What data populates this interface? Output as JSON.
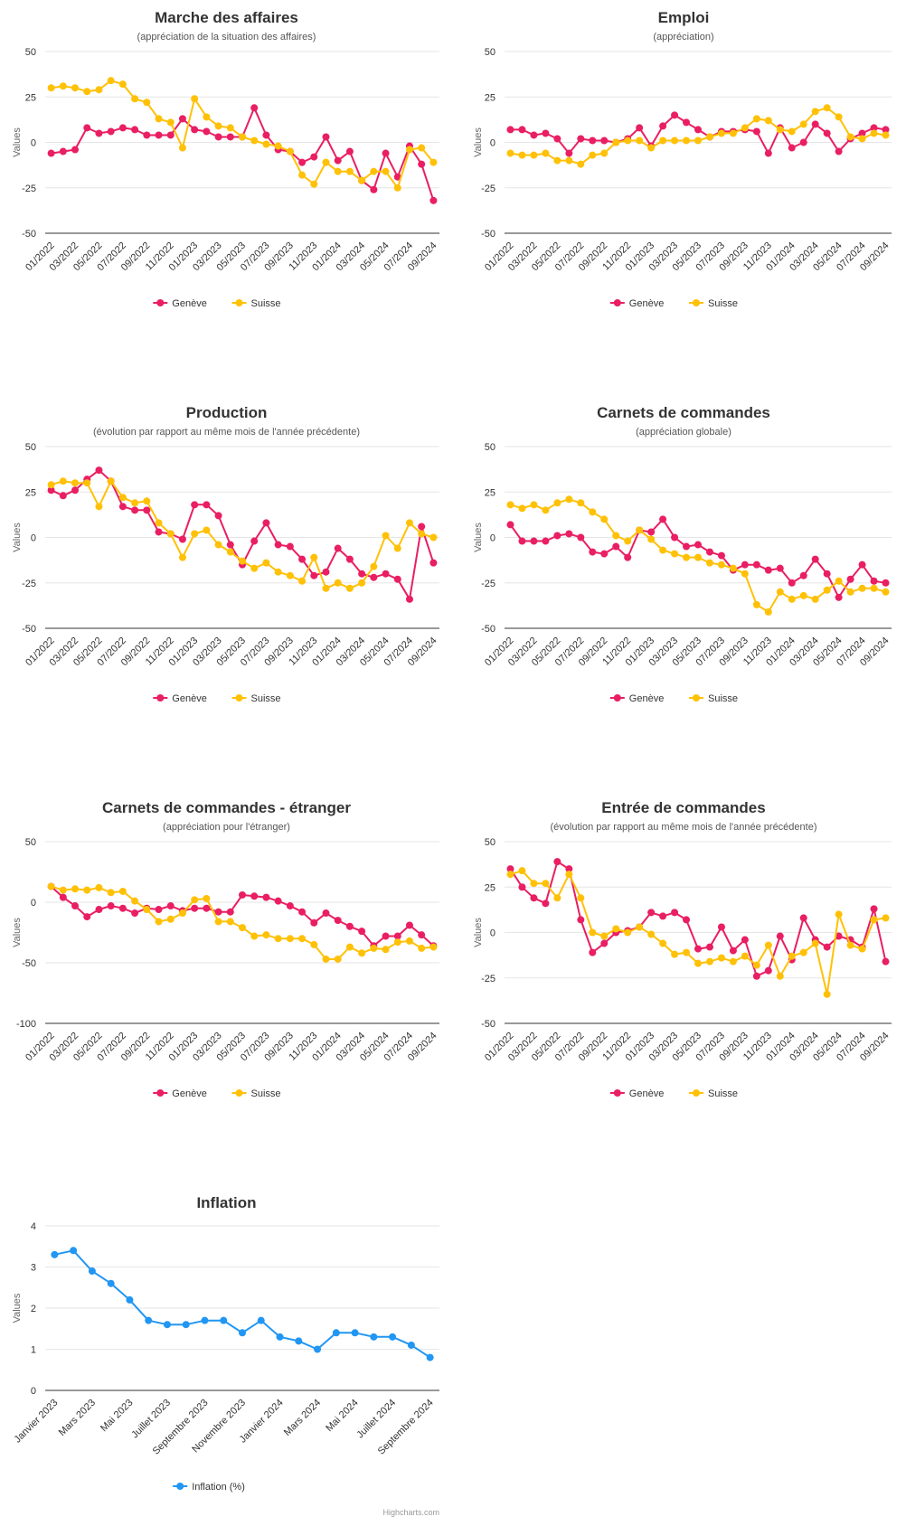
{
  "colors": {
    "geneve": "#e91e63",
    "suisse": "#ffc107",
    "inflation": "#2196f3",
    "grid": "#e6e6e6",
    "axis": "#333333"
  },
  "credit": "Highcharts.com",
  "chart_data": [
    {
      "type": "line",
      "title": "Marche des affaires",
      "subtitle": "(appréciation de la situation des affaires)",
      "ylabel": "Values",
      "ylim": [
        -50,
        50
      ],
      "yticks": [
        "50",
        "25",
        "0",
        "-25",
        "-50"
      ],
      "categories": [
        "01/2022",
        "02/2022",
        "03/2022",
        "04/2022",
        "05/2022",
        "06/2022",
        "07/2022",
        "08/2022",
        "09/2022",
        "10/2022",
        "11/2022",
        "12/2022",
        "01/2023",
        "02/2023",
        "03/2023",
        "04/2023",
        "05/2023",
        "06/2023",
        "07/2023",
        "08/2023",
        "09/2023",
        "10/2023",
        "11/2023",
        "12/2023",
        "01/2024",
        "02/2024",
        "03/2024",
        "04/2024",
        "05/2024",
        "06/2024",
        "07/2024",
        "08/2024",
        "09/2024"
      ],
      "xticklabels": [
        "01/2022",
        "03/2022",
        "05/2022",
        "07/2022",
        "09/2022",
        "11/2022",
        "01/2023",
        "03/2023",
        "05/2023",
        "07/2023",
        "09/2023",
        "11/2023",
        "01/2024",
        "03/2024",
        "05/2024",
        "07/2024",
        "09/2024"
      ],
      "series": [
        {
          "name": "Genève",
          "values": [
            -6,
            -5,
            -4,
            8,
            5,
            6,
            8,
            7,
            4,
            4,
            4,
            13,
            7,
            6,
            3,
            3,
            3,
            19,
            4,
            -4,
            -5,
            -11,
            -8,
            3,
            -10,
            -5,
            -21,
            -26,
            -6,
            -19,
            -2,
            -12,
            -32
          ]
        },
        {
          "name": "Suisse",
          "values": [
            30,
            31,
            30,
            28,
            29,
            34,
            32,
            24,
            22,
            13,
            11,
            -3,
            24,
            14,
            9,
            8,
            3,
            1,
            -1,
            -2,
            -5,
            -18,
            -23,
            -11,
            -16,
            -16,
            -21,
            -16,
            -16,
            -25,
            -4,
            -3,
            -11
          ]
        }
      ]
    },
    {
      "type": "line",
      "title": "Emploi",
      "subtitle": "(appréciation)",
      "ylabel": "Values",
      "ylim": [
        -50,
        50
      ],
      "yticks": [
        "50",
        "25",
        "0",
        "-25",
        "-50"
      ],
      "categories": [
        "01/2022",
        "02/2022",
        "03/2022",
        "04/2022",
        "05/2022",
        "06/2022",
        "07/2022",
        "08/2022",
        "09/2022",
        "10/2022",
        "11/2022",
        "12/2022",
        "01/2023",
        "02/2023",
        "03/2023",
        "04/2023",
        "05/2023",
        "06/2023",
        "07/2023",
        "08/2023",
        "09/2023",
        "10/2023",
        "11/2023",
        "12/2023",
        "01/2024",
        "02/2024",
        "03/2024",
        "04/2024",
        "05/2024",
        "06/2024",
        "07/2024",
        "08/2024",
        "09/2024"
      ],
      "xticklabels": [
        "01/2022",
        "03/2022",
        "05/2022",
        "07/2022",
        "09/2022",
        "11/2022",
        "01/2023",
        "03/2023",
        "05/2023",
        "07/2023",
        "09/2023",
        "11/2023",
        "01/2024",
        "03/2024",
        "05/2024",
        "07/2024",
        "09/2024"
      ],
      "series": [
        {
          "name": "Genève",
          "values": [
            7,
            7,
            4,
            5,
            2,
            -6,
            2,
            1,
            1,
            0,
            2,
            8,
            -2,
            9,
            15,
            11,
            7,
            3,
            6,
            6,
            7,
            6,
            -6,
            8,
            -3,
            0,
            10,
            5,
            -5,
            2,
            5,
            8,
            7
          ]
        },
        {
          "name": "Suisse",
          "values": [
            -6,
            -7,
            -7,
            -6,
            -10,
            -10,
            -12,
            -7,
            -6,
            0,
            1,
            1,
            -3,
            1,
            1,
            1,
            1,
            3,
            5,
            5,
            8,
            13,
            12,
            7,
            6,
            10,
            17,
            19,
            14,
            3,
            2,
            5,
            4
          ]
        }
      ]
    },
    {
      "type": "line",
      "title": "Production",
      "subtitle": "(évolution par rapport au même mois de l'année précédente)",
      "ylabel": "Values",
      "ylim": [
        -50,
        50
      ],
      "yticks": [
        "50",
        "25",
        "0",
        "-25",
        "-50"
      ],
      "categories": [
        "01/2022",
        "02/2022",
        "03/2022",
        "04/2022",
        "05/2022",
        "06/2022",
        "07/2022",
        "08/2022",
        "09/2022",
        "10/2022",
        "11/2022",
        "12/2022",
        "01/2023",
        "02/2023",
        "03/2023",
        "04/2023",
        "05/2023",
        "06/2023",
        "07/2023",
        "08/2023",
        "09/2023",
        "10/2023",
        "11/2023",
        "12/2023",
        "01/2024",
        "02/2024",
        "03/2024",
        "04/2024",
        "05/2024",
        "06/2024",
        "07/2024",
        "08/2024",
        "09/2024"
      ],
      "xticklabels": [
        "01/2022",
        "03/2022",
        "05/2022",
        "07/2022",
        "09/2022",
        "11/2022",
        "01/2023",
        "03/2023",
        "05/2023",
        "07/2023",
        "09/2023",
        "11/2023",
        "01/2024",
        "03/2024",
        "05/2024",
        "07/2024",
        "09/2024"
      ],
      "series": [
        {
          "name": "Genève",
          "values": [
            26,
            23,
            26,
            32,
            37,
            31,
            17,
            15,
            15,
            3,
            2,
            -1,
            18,
            18,
            12,
            -4,
            -15,
            -2,
            8,
            -4,
            -5,
            -12,
            -21,
            -19,
            -6,
            -12,
            -20,
            -22,
            -20,
            -23,
            -34,
            6,
            -14
          ]
        },
        {
          "name": "Suisse",
          "values": [
            29,
            31,
            30,
            30,
            17,
            31,
            22,
            19,
            20,
            8,
            2,
            -11,
            2,
            4,
            -4,
            -8,
            -13,
            -17,
            -14,
            -19,
            -21,
            -24,
            -11,
            -28,
            -25,
            -28,
            -25,
            -16,
            1,
            -6,
            8,
            2,
            0
          ]
        }
      ]
    },
    {
      "type": "line",
      "title": "Carnets de commandes",
      "subtitle": "(appréciation globale)",
      "ylabel": "Values",
      "ylim": [
        -50,
        50
      ],
      "yticks": [
        "50",
        "25",
        "0",
        "-25",
        "-50"
      ],
      "categories": [
        "01/2022",
        "02/2022",
        "03/2022",
        "04/2022",
        "05/2022",
        "06/2022",
        "07/2022",
        "08/2022",
        "09/2022",
        "10/2022",
        "11/2022",
        "12/2022",
        "01/2023",
        "02/2023",
        "03/2023",
        "04/2023",
        "05/2023",
        "06/2023",
        "07/2023",
        "08/2023",
        "09/2023",
        "10/2023",
        "11/2023",
        "12/2023",
        "01/2024",
        "02/2024",
        "03/2024",
        "04/2024",
        "05/2024",
        "06/2024",
        "07/2024",
        "08/2024",
        "09/2024"
      ],
      "xticklabels": [
        "01/2022",
        "03/2022",
        "05/2022",
        "07/2022",
        "09/2022",
        "11/2022",
        "01/2023",
        "03/2023",
        "05/2023",
        "07/2023",
        "09/2023",
        "11/2023",
        "01/2024",
        "03/2024",
        "05/2024",
        "07/2024",
        "09/2024"
      ],
      "series": [
        {
          "name": "Genève",
          "values": [
            7,
            -2,
            -2,
            -2,
            1,
            2,
            0,
            -8,
            -9,
            -5,
            -11,
            4,
            3,
            10,
            0,
            -5,
            -4,
            -8,
            -10,
            -18,
            -15,
            -15,
            -18,
            -17,
            -25,
            -21,
            -12,
            -20,
            -33,
            -23,
            -15,
            -24,
            -25
          ]
        },
        {
          "name": "Suisse",
          "values": [
            18,
            16,
            18,
            15,
            19,
            21,
            19,
            14,
            10,
            1,
            -2,
            4,
            -1,
            -7,
            -9,
            -11,
            -11,
            -14,
            -15,
            -17,
            -20,
            -37,
            -41,
            -30,
            -34,
            -32,
            -34,
            -29,
            -24,
            -30,
            -28,
            -28,
            -30
          ]
        }
      ]
    },
    {
      "type": "line",
      "title": "Carnets de commandes - étranger",
      "subtitle": "(appréciation pour l'étranger)",
      "ylabel": "Values",
      "ylim": [
        -100,
        50
      ],
      "yticks": [
        "50",
        "0",
        "-50",
        "-100"
      ],
      "categories": [
        "01/2022",
        "02/2022",
        "03/2022",
        "04/2022",
        "05/2022",
        "06/2022",
        "07/2022",
        "08/2022",
        "09/2022",
        "10/2022",
        "11/2022",
        "12/2022",
        "01/2023",
        "02/2023",
        "03/2023",
        "04/2023",
        "05/2023",
        "06/2023",
        "07/2023",
        "08/2023",
        "09/2023",
        "10/2023",
        "11/2023",
        "12/2023",
        "01/2024",
        "02/2024",
        "03/2024",
        "04/2024",
        "05/2024",
        "06/2024",
        "07/2024",
        "08/2024",
        "09/2024"
      ],
      "xticklabels": [
        "01/2022",
        "03/2022",
        "05/2022",
        "07/2022",
        "09/2022",
        "11/2022",
        "01/2023",
        "03/2023",
        "05/2023",
        "07/2023",
        "09/2023",
        "11/2023",
        "01/2024",
        "03/2024",
        "05/2024",
        "07/2024",
        "09/2024"
      ],
      "series": [
        {
          "name": "Genève",
          "values": [
            13,
            4,
            -3,
            -12,
            -6,
            -3,
            -5,
            -9,
            -5,
            -6,
            -3,
            -7,
            -5,
            -5,
            -8,
            -8,
            6,
            5,
            4,
            1,
            -3,
            -8,
            -17,
            -9,
            -15,
            -20,
            -24,
            -36,
            -28,
            -28,
            -19,
            -27,
            -36
          ]
        },
        {
          "name": "Suisse",
          "values": [
            13,
            10,
            11,
            10,
            12,
            8,
            9,
            1,
            -6,
            -16,
            -14,
            -9,
            2,
            3,
            -16,
            -16,
            -21,
            -28,
            -27,
            -30,
            -30,
            -30,
            -35,
            -47,
            -47,
            -37,
            -42,
            -38,
            -39,
            -33,
            -32,
            -38,
            -37
          ]
        }
      ]
    },
    {
      "type": "line",
      "title": "Entrée de commandes",
      "subtitle": "(évolution par rapport au même mois de l'année précédente)",
      "ylabel": "Values",
      "ylim": [
        -50,
        50
      ],
      "yticks": [
        "50",
        "25",
        "0",
        "-25",
        "-50"
      ],
      "categories": [
        "01/2022",
        "02/2022",
        "03/2022",
        "04/2022",
        "05/2022",
        "06/2022",
        "07/2022",
        "08/2022",
        "09/2022",
        "10/2022",
        "11/2022",
        "12/2022",
        "01/2023",
        "02/2023",
        "03/2023",
        "04/2023",
        "05/2023",
        "06/2023",
        "07/2023",
        "08/2023",
        "09/2023",
        "10/2023",
        "11/2023",
        "12/2023",
        "01/2024",
        "02/2024",
        "03/2024",
        "04/2024",
        "05/2024",
        "06/2024",
        "07/2024",
        "08/2024",
        "09/2024"
      ],
      "xticklabels": [
        "01/2022",
        "03/2022",
        "05/2022",
        "07/2022",
        "09/2022",
        "11/2022",
        "01/2023",
        "03/2023",
        "05/2023",
        "07/2023",
        "09/2023",
        "11/2023",
        "01/2024",
        "03/2024",
        "05/2024",
        "07/2024",
        "09/2024"
      ],
      "series": [
        {
          "name": "Genève",
          "values": [
            35,
            25,
            19,
            16,
            39,
            35,
            7,
            -11,
            -6,
            0,
            1,
            3,
            11,
            9,
            11,
            7,
            -9,
            -8,
            3,
            -10,
            -4,
            -24,
            -21,
            -2,
            -15,
            8,
            -4,
            -8,
            -2,
            -4,
            -8,
            13,
            -16
          ]
        },
        {
          "name": "Suisse",
          "values": [
            32,
            34,
            27,
            27,
            19,
            32,
            19,
            0,
            -2,
            2,
            0,
            3,
            -1,
            -6,
            -12,
            -11,
            -17,
            -16,
            -14,
            -16,
            -13,
            -18,
            -7,
            -24,
            -13,
            -11,
            -6,
            -34,
            10,
            -7,
            -9,
            7,
            8
          ]
        }
      ]
    },
    {
      "type": "line",
      "title": "Inflation",
      "subtitle": "",
      "ylabel": "Values",
      "ylim": [
        0,
        4
      ],
      "yticks": [
        "4",
        "3",
        "2",
        "1",
        "0"
      ],
      "categories": [
        "Janvier 2023",
        "Février 2023",
        "Mars 2023",
        "Avril 2023",
        "Mai 2023",
        "Juin 2023",
        "Juillet 2023",
        "Août 2023",
        "Septembre 2023",
        "Octobre 2023",
        "Novembre 2023",
        "Décembre 2023",
        "Janvier 2024",
        "Février 2024",
        "Mars 2024",
        "Avril 2024",
        "Mai 2024",
        "Juin 2024",
        "Juillet 2024",
        "Août 2024",
        "Septembre 2024"
      ],
      "xticklabels": [
        "Janvier 2023",
        "Mars 2023",
        "Mai 2023",
        "Juillet 2023",
        "Septembre 2023",
        "Novembre 2023",
        "Janvier 2024",
        "Mars 2024",
        "Mai 2024",
        "Juillet 2024",
        "Septembre 2024"
      ],
      "series": [
        {
          "name": "Inflation (%)",
          "values": [
            3.3,
            3.4,
            2.9,
            2.6,
            2.2,
            1.7,
            1.6,
            1.6,
            1.7,
            1.7,
            1.4,
            1.7,
            1.3,
            1.2,
            1.0,
            1.4,
            1.4,
            1.3,
            1.3,
            1.1,
            0.8
          ]
        }
      ]
    }
  ]
}
